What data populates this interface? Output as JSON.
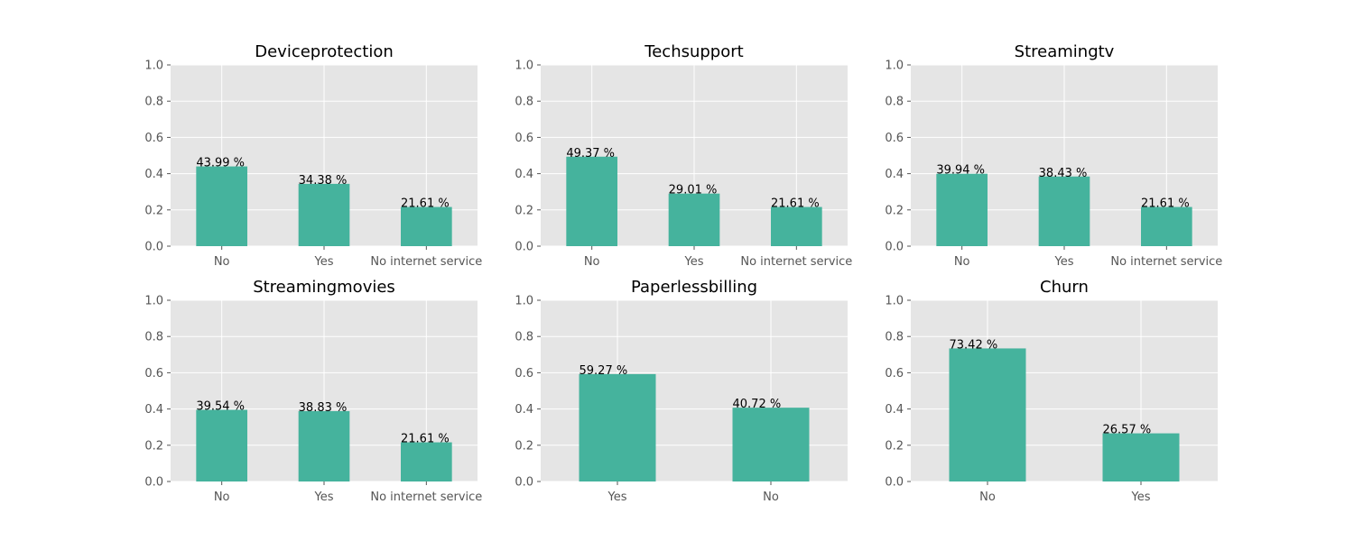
{
  "style": {
    "bar_color": "#45b39d",
    "panel_bg": "#e5e5e5",
    "grid_color": "#ffffff"
  },
  "chart_data": [
    {
      "type": "bar",
      "title": "Deviceprotection",
      "categories": [
        "No",
        "Yes",
        "No internet service"
      ],
      "values": [
        0.4399,
        0.3438,
        0.2161
      ],
      "labels": [
        "43.99 %",
        "34.38 %",
        "21.61 %"
      ],
      "ylim": [
        0,
        1
      ],
      "yticks": [
        "0.0",
        "0.2",
        "0.4",
        "0.6",
        "0.8",
        "1.0"
      ],
      "grid": true
    },
    {
      "type": "bar",
      "title": "Techsupport",
      "categories": [
        "No",
        "Yes",
        "No internet service"
      ],
      "values": [
        0.4937,
        0.2901,
        0.2161
      ],
      "labels": [
        "49.37 %",
        "29.01 %",
        "21.61 %"
      ],
      "ylim": [
        0,
        1
      ],
      "yticks": [
        "0.0",
        "0.2",
        "0.4",
        "0.6",
        "0.8",
        "1.0"
      ],
      "grid": true
    },
    {
      "type": "bar",
      "title": "Streamingtv",
      "categories": [
        "No",
        "Yes",
        "No internet service"
      ],
      "values": [
        0.3994,
        0.3843,
        0.2161
      ],
      "labels": [
        "39.94 %",
        "38.43 %",
        "21.61 %"
      ],
      "ylim": [
        0,
        1
      ],
      "yticks": [
        "0.0",
        "0.2",
        "0.4",
        "0.6",
        "0.8",
        "1.0"
      ],
      "grid": true
    },
    {
      "type": "bar",
      "title": "Streamingmovies",
      "categories": [
        "No",
        "Yes",
        "No internet service"
      ],
      "values": [
        0.3954,
        0.3883,
        0.2161
      ],
      "labels": [
        "39.54 %",
        "38.83 %",
        "21.61 %"
      ],
      "ylim": [
        0,
        1
      ],
      "yticks": [
        "0.0",
        "0.2",
        "0.4",
        "0.6",
        "0.8",
        "1.0"
      ],
      "grid": true
    },
    {
      "type": "bar",
      "title": "Paperlessbilling",
      "categories": [
        "Yes",
        "No"
      ],
      "values": [
        0.5927,
        0.4072
      ],
      "labels": [
        "59.27 %",
        "40.72 %"
      ],
      "ylim": [
        0,
        1
      ],
      "yticks": [
        "0.0",
        "0.2",
        "0.4",
        "0.6",
        "0.8",
        "1.0"
      ],
      "grid": true
    },
    {
      "type": "bar",
      "title": "Churn",
      "categories": [
        "No",
        "Yes"
      ],
      "values": [
        0.7342,
        0.2657
      ],
      "labels": [
        "73.42 %",
        "26.57 %"
      ],
      "ylim": [
        0,
        1
      ],
      "yticks": [
        "0.0",
        "0.2",
        "0.4",
        "0.6",
        "0.8",
        "1.0"
      ],
      "grid": true
    }
  ]
}
